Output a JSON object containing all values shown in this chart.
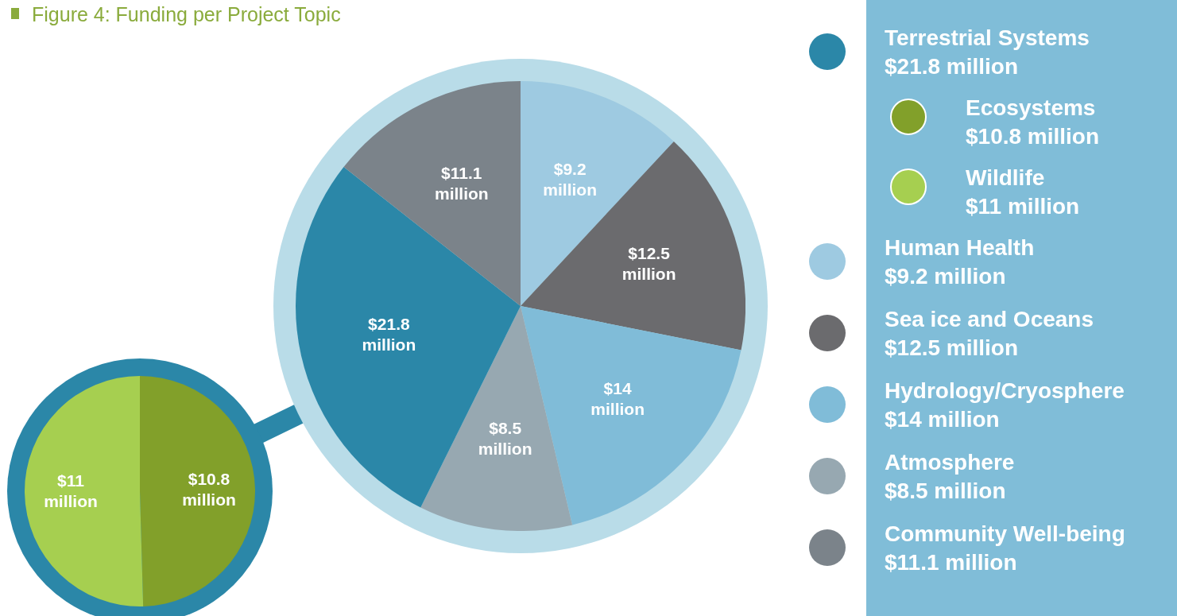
{
  "chart_data": [
    {
      "type": "pie",
      "title": "Figure 4: Funding per Project Topic",
      "legend": "right",
      "categories": [
        "Human Health",
        "Sea ice and Oceans",
        "Hydrology/Cryosphere",
        "Atmosphere",
        "Terrestrial Systems",
        "Community Well-being"
      ],
      "values": [
        9.2,
        12.5,
        14,
        8.5,
        21.8,
        11.1
      ],
      "colors": [
        "#9ecae1",
        "#6b6b6e",
        "#80bcd8",
        "#97a8b1",
        "#2b87a8",
        "#7b838a"
      ],
      "value_labels": [
        "$9.2 million",
        "$12.5 million",
        "$14 million",
        "$8.5 million",
        "$21.8 million",
        "$11.1 million"
      ]
    },
    {
      "type": "pie",
      "legend": "right",
      "categories": [
        "Ecosystems",
        "Wildlife"
      ],
      "values": [
        10.8,
        11
      ],
      "colors": [
        "#82a02a",
        "#a6cf50"
      ],
      "value_labels": [
        "$10.8 million",
        "$11 million"
      ]
    }
  ]
}
